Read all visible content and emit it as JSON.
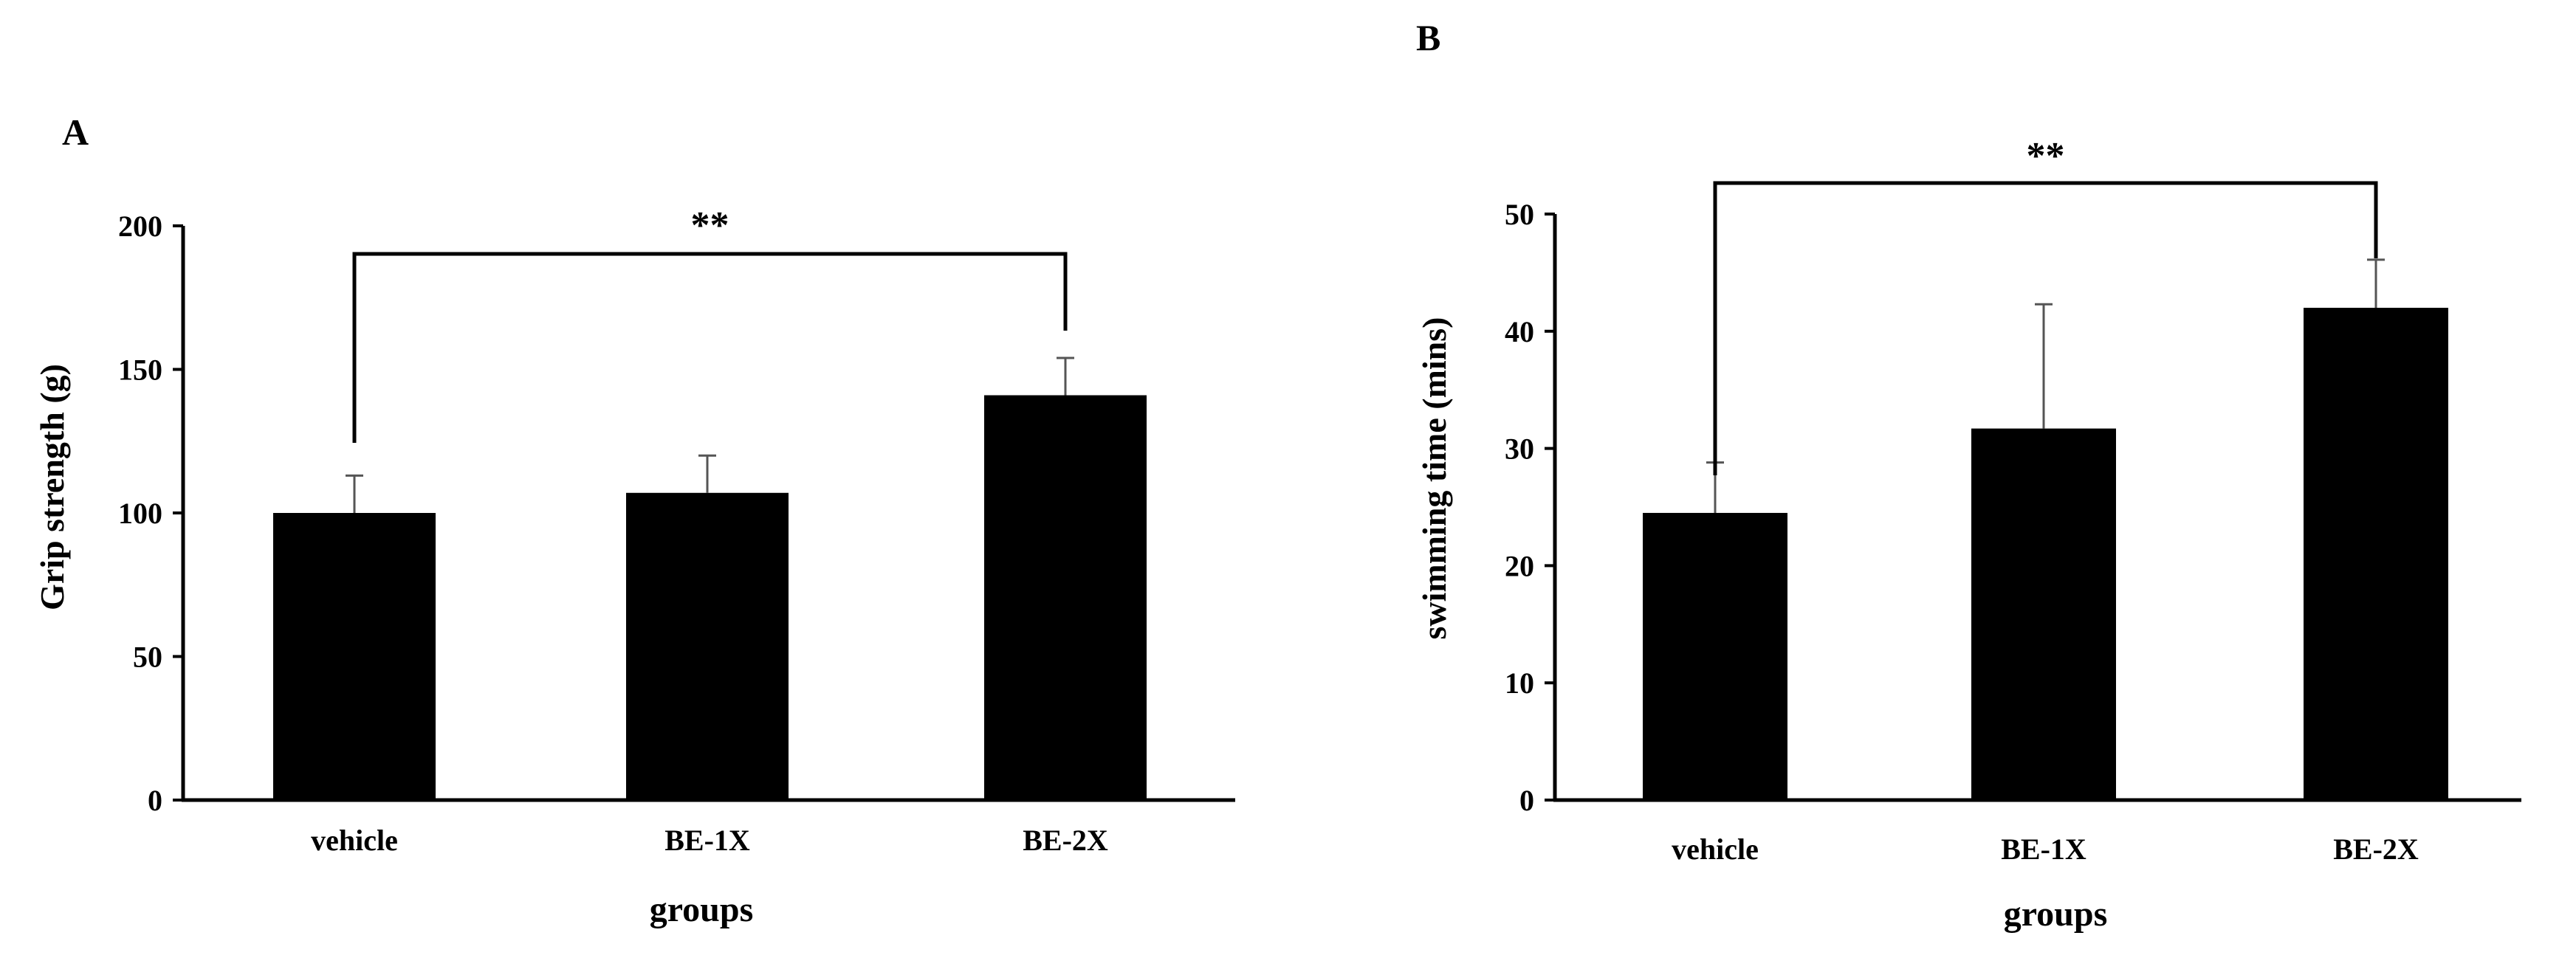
{
  "chart_data": [
    {
      "type": "bar",
      "panel": "A",
      "categories": [
        "vehicle",
        "BE-1X",
        "BE-2X"
      ],
      "values": [
        100,
        107,
        141
      ],
      "error": [
        13,
        13,
        13
      ],
      "ylim": [
        0,
        200
      ],
      "yticks": [
        0,
        50,
        100,
        150,
        200
      ],
      "ylabel": "Grip strength (g)",
      "xlabel": "groups",
      "significance": {
        "from": 0,
        "to": 2,
        "label": "**"
      },
      "grid": false,
      "bar_color": "#000000"
    },
    {
      "type": "bar",
      "panel": "B",
      "categories": [
        "vehicle",
        "BE-1X",
        "BE-2X"
      ],
      "values": [
        24.5,
        31.7,
        42
      ],
      "error": [
        4.3,
        10.6,
        4.1
      ],
      "ylim": [
        0,
        50
      ],
      "yticks": [
        0,
        10,
        20,
        30,
        40,
        50
      ],
      "ylabel": "swimming time (mins)",
      "xlabel": "groups",
      "significance": {
        "from": 0,
        "to": 2,
        "label": "**"
      },
      "grid": false,
      "bar_color": "#000000"
    }
  ]
}
